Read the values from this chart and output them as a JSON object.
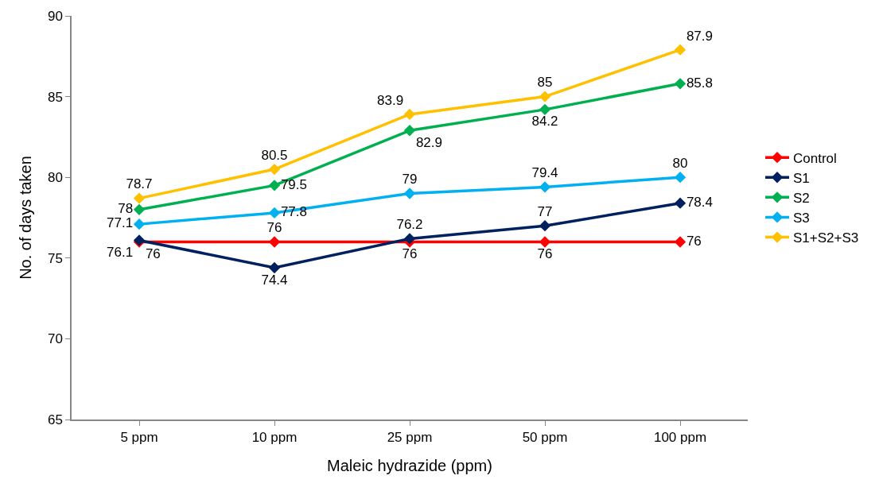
{
  "chart_data": {
    "type": "line",
    "xlabel": "Maleic hydrazide (ppm)",
    "ylabel": "No. of days taken",
    "categories": [
      "5 ppm",
      "10 ppm",
      "25 ppm",
      "50 ppm",
      "100 ppm"
    ],
    "series": [
      {
        "name": "Control",
        "color": "#ff0000",
        "values": [
          76,
          76,
          76,
          76,
          76
        ]
      },
      {
        "name": "S1",
        "color": "#002060",
        "values": [
          76.1,
          74.4,
          76.2,
          77,
          78.4
        ]
      },
      {
        "name": "S2",
        "color": "#00b050",
        "values": [
          78,
          79.5,
          82.9,
          84.2,
          85.8
        ]
      },
      {
        "name": "S3",
        "color": "#00b0f0",
        "values": [
          77.1,
          77.8,
          79,
          79.4,
          80
        ]
      },
      {
        "name": "S1+S2+S3",
        "color": "#ffc000",
        "values": [
          78.7,
          80.5,
          83.9,
          85,
          87.9
        ]
      }
    ],
    "ylim": [
      65,
      90
    ],
    "yticks": [
      65,
      70,
      75,
      80,
      85,
      90
    ],
    "legend": "right",
    "marker": "diamond",
    "line_style": "solid",
    "data_labels": true
  }
}
